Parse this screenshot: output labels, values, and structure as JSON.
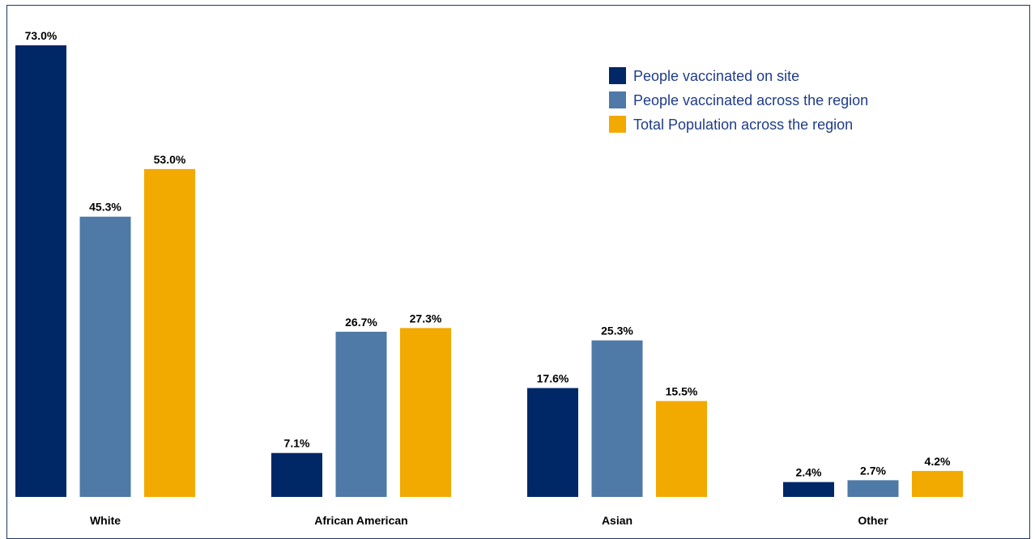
{
  "chart_data": {
    "type": "bar",
    "categories": [
      "White",
      "African American",
      "Asian",
      "Other"
    ],
    "series": [
      {
        "name": "People vaccinated on site",
        "color": "#002866",
        "values": [
          73.0,
          7.1,
          17.6,
          2.4
        ],
        "labels": [
          "73.0%",
          "7.1%",
          "17.6%",
          "2.4%"
        ]
      },
      {
        "name": "People vaccinated across the region",
        "color": "#4f79a7",
        "values": [
          45.3,
          26.7,
          25.3,
          2.7
        ],
        "labels": [
          "45.3%",
          "26.7%",
          "25.3%",
          "2.7%"
        ]
      },
      {
        "name": "Total Population across the region",
        "color": "#f2a900",
        "values": [
          53.0,
          27.3,
          15.5,
          4.2
        ],
        "labels": [
          "53.0%",
          "27.3%",
          "15.5%",
          "4.2%"
        ]
      }
    ],
    "ylim": [
      0,
      73
    ],
    "legend_position": "top-right",
    "legend_text_color": "#1f3c88",
    "grid": false
  }
}
